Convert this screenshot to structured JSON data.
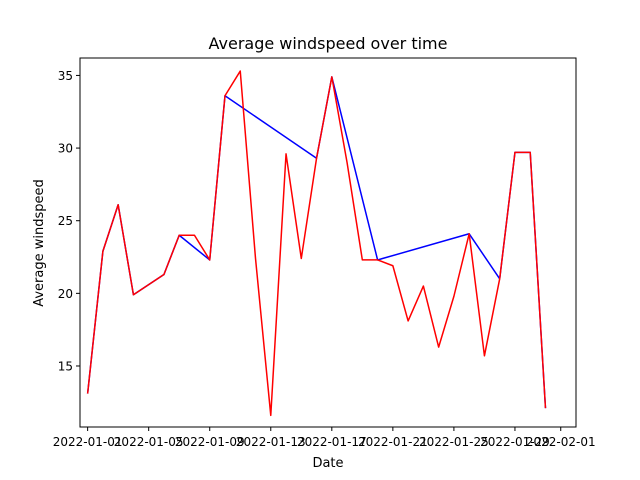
{
  "chart_data": {
    "type": "line",
    "title": "Average windspeed over time",
    "xlabel": "Date",
    "ylabel": "Average windspeed",
    "xlim": [
      "2021-12-31T12:00",
      "2022-02-02"
    ],
    "ylim": [
      10.8,
      36.2
    ],
    "grid": false,
    "x_ticks": [
      {
        "value": "2022-01-01",
        "label": "2022-01-01"
      },
      {
        "value": "2022-01-05",
        "label": "2022-01-05"
      },
      {
        "value": "2022-01-09",
        "label": "2022-01-09"
      },
      {
        "value": "2022-01-13",
        "label": "2022-01-13"
      },
      {
        "value": "2022-01-17",
        "label": "2022-01-17"
      },
      {
        "value": "2022-01-21",
        "label": "2022-01-21"
      },
      {
        "value": "2022-01-25",
        "label": "2022-01-25"
      },
      {
        "value": "2022-01-29",
        "label": "2022-01-29"
      },
      {
        "value": "2022-02-01",
        "label": "2022-02-01"
      }
    ],
    "y_ticks": [
      15,
      20,
      25,
      30,
      35
    ],
    "series": [
      {
        "color": "#0000ff",
        "points": [
          [
            "2022-01-01",
            13.1
          ],
          [
            "2022-01-02",
            22.9
          ],
          [
            "2022-01-03",
            26.1
          ],
          [
            "2022-01-04",
            19.9
          ],
          [
            "2022-01-06",
            21.3
          ],
          [
            "2022-01-07",
            24.0
          ],
          [
            "2022-01-09",
            22.3
          ],
          [
            "2022-01-10",
            33.6
          ],
          [
            "2022-01-16",
            29.3
          ],
          [
            "2022-01-17",
            34.9
          ],
          [
            "2022-01-20",
            22.3
          ],
          [
            "2022-01-26",
            24.1
          ],
          [
            "2022-01-28",
            21.0
          ],
          [
            "2022-01-29",
            29.7
          ],
          [
            "2022-01-30",
            29.7
          ],
          [
            "2022-01-31",
            12.1
          ]
        ]
      },
      {
        "color": "#ff0000",
        "points": [
          [
            "2022-01-01",
            13.1
          ],
          [
            "2022-01-02",
            22.9
          ],
          [
            "2022-01-03",
            26.1
          ],
          [
            "2022-01-04",
            19.9
          ],
          [
            "2022-01-06",
            21.3
          ],
          [
            "2022-01-07",
            24.0
          ],
          [
            "2022-01-08",
            24.0
          ],
          [
            "2022-01-09",
            22.3
          ],
          [
            "2022-01-10",
            33.6
          ],
          [
            "2022-01-11",
            35.3
          ],
          [
            "2022-01-12",
            22.4
          ],
          [
            "2022-01-13",
            11.6
          ],
          [
            "2022-01-14",
            29.6
          ],
          [
            "2022-01-15",
            22.4
          ],
          [
            "2022-01-16",
            29.3
          ],
          [
            "2022-01-17",
            34.9
          ],
          [
            "2022-01-18",
            29.0
          ],
          [
            "2022-01-19",
            22.3
          ],
          [
            "2022-01-20",
            22.3
          ],
          [
            "2022-01-21",
            21.9
          ],
          [
            "2022-01-22",
            18.1
          ],
          [
            "2022-01-23",
            20.5
          ],
          [
            "2022-01-24",
            16.3
          ],
          [
            "2022-01-25",
            19.8
          ],
          [
            "2022-01-26",
            24.1
          ],
          [
            "2022-01-27",
            15.7
          ],
          [
            "2022-01-28",
            21.0
          ],
          [
            "2022-01-29",
            29.7
          ],
          [
            "2022-01-30",
            29.7
          ],
          [
            "2022-01-31",
            12.1
          ]
        ]
      }
    ]
  }
}
